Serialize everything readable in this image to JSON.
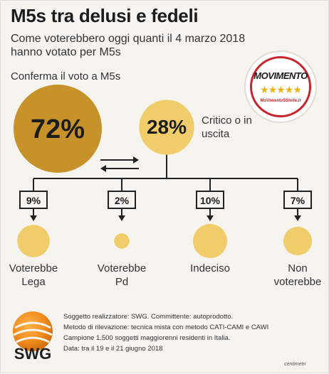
{
  "header": {
    "title": "M5s tra delusi e fedeli",
    "subtitle": "Come voterebbero oggi quanti il 4 marzo 2018 hanno votato per M5s"
  },
  "logo": {
    "word": "MOVIMENTO",
    "stars": "★★★★★",
    "url": "MoVimento5Stelle.it"
  },
  "chart_data": {
    "type": "bubble",
    "main": [
      {
        "name": "Conferma il voto a M5s",
        "value": 72,
        "label": "72%"
      },
      {
        "name": "Critico o in uscita",
        "value": 28,
        "label": "28%"
      }
    ],
    "breakdown": [
      {
        "name": "Voterebbe Lega",
        "value": 9,
        "label": "9%"
      },
      {
        "name": "Voterebbe Pd",
        "value": 2,
        "label": "2%"
      },
      {
        "name": "Indeciso",
        "value": 10,
        "label": "10%"
      },
      {
        "name": "Non voterebbe",
        "value": 7,
        "label": "7%"
      }
    ],
    "colors": {
      "main": "#c8922a",
      "secondary": "#f0cd6a"
    }
  },
  "labels": {
    "confirm": "Conferma il voto a M5s",
    "critico": "Critico o in uscita",
    "breakdown_names": [
      [
        "Voterebbe",
        "Lega"
      ],
      [
        "Voterebbe",
        "Pd"
      ],
      [
        "Indeciso"
      ],
      [
        "Non",
        "voterebbe"
      ]
    ]
  },
  "source": {
    "line1": "Soggetto realizzatore: SWG. Committente: autoprodotto.",
    "line2": "Metodo di rilevazione: tecnica mista con metodo CATI-CAMI e CAWI",
    "line3": "Campione 1.500 soggetti maggiorenni residenti in Italia.",
    "line4": "Data: tra il 19 e il 21 giugno 2018"
  },
  "swg": {
    "name": "SWG"
  },
  "credit": "centimetri"
}
